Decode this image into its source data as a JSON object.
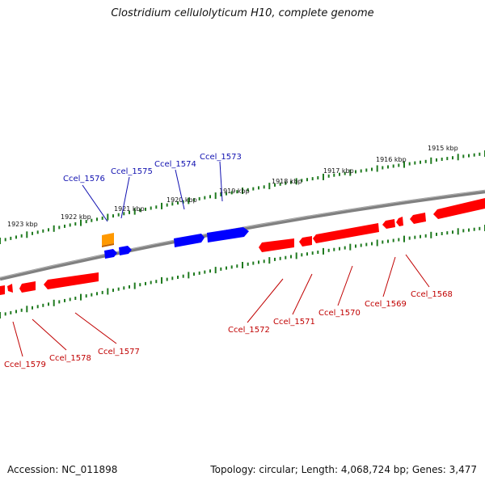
{
  "title": "Clostridium cellulolyticum H10, complete genome",
  "footer": {
    "accession": "Accession: NC_011898",
    "summary": "Topology: circular; Length: 4,068,724 bp; Genes: 3,477"
  },
  "colors": {
    "backbone": "#808080",
    "ticks": "#1f7a1f",
    "forward_gene": "#0000ff",
    "reverse_gene": "#ff0000",
    "other_gene": "#ff9900",
    "forward_label": "#1010b0",
    "reverse_label": "#c00000"
  },
  "diagram": {
    "kbp_labels_upper": [
      "1923 kbp",
      "1922 kbp",
      "1921 kbp",
      "1920 kbp",
      "1919 kbp",
      "1918 kbp",
      "1917 kbp",
      "1916 kbp",
      "1915 kbp"
    ],
    "forward_genes": [
      "Ccel_1576",
      "Ccel_1575",
      "Ccel_1574",
      "Ccel_1573"
    ],
    "reverse_genes": [
      "Ccel_1579",
      "Ccel_1578",
      "Ccel_1577",
      "Ccel_1572",
      "Ccel_1571",
      "Ccel_1570",
      "Ccel_1569",
      "Ccel_1568"
    ]
  }
}
